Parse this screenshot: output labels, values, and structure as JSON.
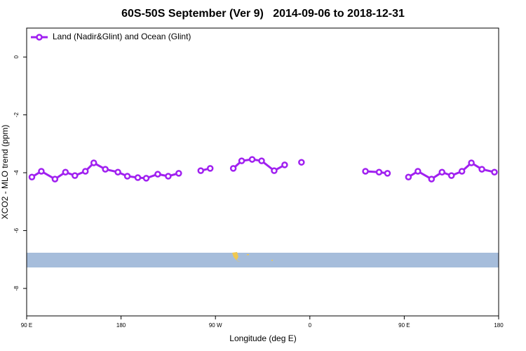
{
  "chart_data": {
    "type": "line",
    "title": "60S-50S September (Ver 9)   2014-09-06 to 2018-12-31",
    "x_label": "Longitude (deg E)",
    "y_label": "XCO2 - MLO trend (ppm)",
    "xlim": [
      90,
      540
    ],
    "xticks": [
      {
        "value": 90,
        "label": "90 E"
      },
      {
        "value": 180,
        "label": "180"
      },
      {
        "value": 270,
        "label": "90 W"
      },
      {
        "value": 360,
        "label": "0"
      },
      {
        "value": 450,
        "label": "90 E"
      },
      {
        "value": 540,
        "label": "180"
      }
    ],
    "ylim": [
      -8.95,
      1.0
    ],
    "yticks": [
      0,
      -2,
      -4,
      -6,
      -8
    ],
    "legend": "top-left",
    "x": [
      95,
      104,
      117,
      127,
      136,
      146,
      154,
      165,
      177,
      186,
      196,
      204,
      215,
      225,
      235,
      245,
      256,
      265,
      276,
      287,
      295,
      305,
      314,
      326,
      336,
      344,
      352,
      380,
      413,
      426,
      434,
      444,
      454,
      463,
      476,
      486,
      495,
      505,
      514,
      524,
      536
    ],
    "series": [
      {
        "name": "Land (Nadir&Glint) and Ocean (Glint)",
        "color": "#a020f0",
        "values": [
          -4.15,
          -3.95,
          -4.22,
          -3.98,
          -4.1,
          -3.95,
          -3.66,
          -3.88,
          -3.98,
          -4.12,
          -4.17,
          -4.19,
          -4.05,
          -4.12,
          -4.02,
          null,
          -3.93,
          -3.85,
          null,
          -3.85,
          -3.59,
          -3.54,
          -3.59,
          -3.93,
          -3.73,
          null,
          -3.64,
          null,
          -3.95,
          -3.98,
          -4.02,
          null,
          -4.15,
          -3.95,
          -4.22,
          -3.98,
          -4.1,
          -3.95,
          -3.66,
          -3.88,
          -3.98
        ]
      }
    ]
  }
}
